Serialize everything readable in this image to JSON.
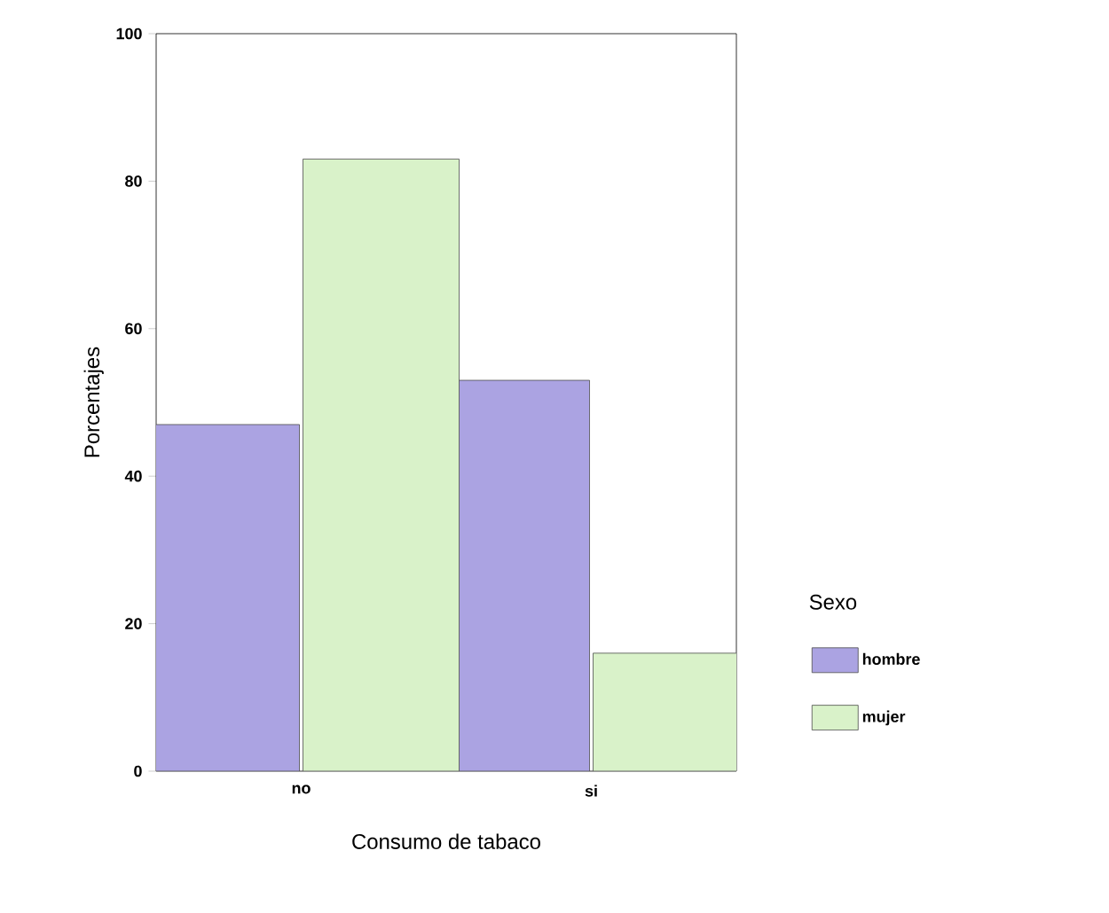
{
  "chart_data": {
    "type": "bar",
    "xlabel": "Consumo de tabaco",
    "ylabel": "Porcentajes",
    "legend_title": "Sexo",
    "categories": [
      "no",
      "si"
    ],
    "series": [
      {
        "name": "hombre",
        "color": "#aba3e2",
        "values": [
          47,
          53
        ]
      },
      {
        "name": "mujer",
        "color": "#d9f2c9",
        "values": [
          83,
          16
        ]
      }
    ],
    "ylim": [
      0,
      100
    ],
    "yticks": [
      0,
      20,
      40,
      60,
      80,
      100
    ],
    "legend": "right",
    "grid": false
  }
}
